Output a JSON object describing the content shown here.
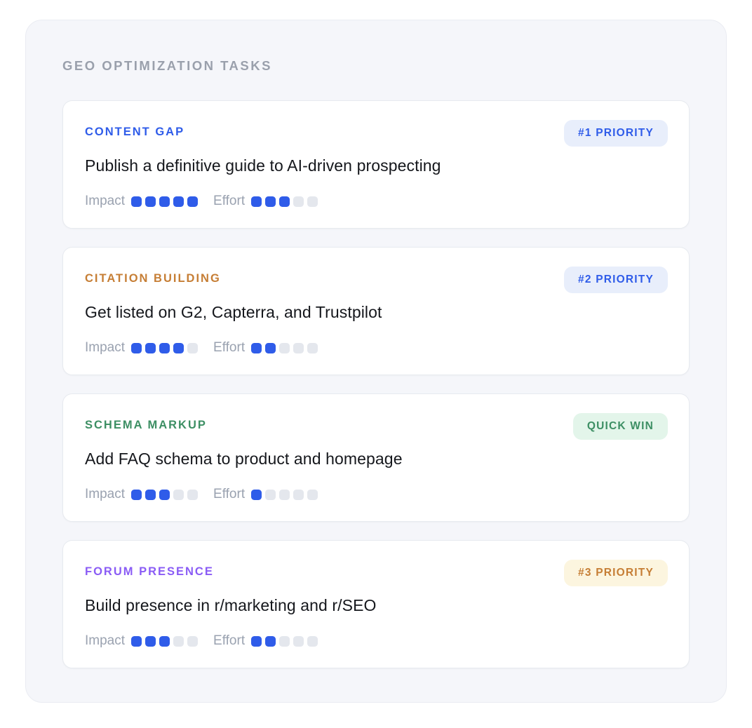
{
  "header": {
    "title": "GEO OPTIMIZATION TASKS"
  },
  "metrics": {
    "impact_label": "Impact",
    "effort_label": "Effort",
    "scale_max": 5,
    "filled_color": "#2f5ce9",
    "empty_color": "#e4e7ed"
  },
  "theme": {
    "page_bg": "#ffffff",
    "panel_bg": "#f5f6fa",
    "panel_border": "#eaecf2",
    "card_bg": "#ffffff",
    "card_border": "#e7eaef",
    "header_text_color": "#9aa0ac",
    "task_title_color": "#15171c",
    "metric_label_color": "#9aa2b0"
  },
  "tasks": [
    {
      "category": "CONTENT GAP",
      "category_color": "#2f5ce9",
      "title": "Publish a definitive guide to AI-driven prospecting",
      "badge": {
        "label": "#1 PRIORITY",
        "text_color": "#2f5ce9",
        "bg_color": "#e8eefb"
      },
      "impact": 5,
      "effort": 3
    },
    {
      "category": "CITATION BUILDING",
      "category_color": "#c67e35",
      "title": "Get listed on G2, Capterra, and Trustpilot",
      "badge": {
        "label": "#2 PRIORITY",
        "text_color": "#2f5ce9",
        "bg_color": "#e8eefb"
      },
      "impact": 4,
      "effort": 2
    },
    {
      "category": "SCHEMA MARKUP",
      "category_color": "#3d8f64",
      "title": "Add FAQ schema to product and homepage",
      "badge": {
        "label": "QUICK WIN",
        "text_color": "#3d8f64",
        "bg_color": "#e3f5ea"
      },
      "impact": 3,
      "effort": 1
    },
    {
      "category": "FORUM PRESENCE",
      "category_color": "#8a5cf5",
      "title": "Build presence in r/marketing and r/SEO",
      "badge": {
        "label": "#3 PRIORITY",
        "text_color": "#c67e35",
        "bg_color": "#fcf5df"
      },
      "impact": 3,
      "effort": 2
    }
  ]
}
